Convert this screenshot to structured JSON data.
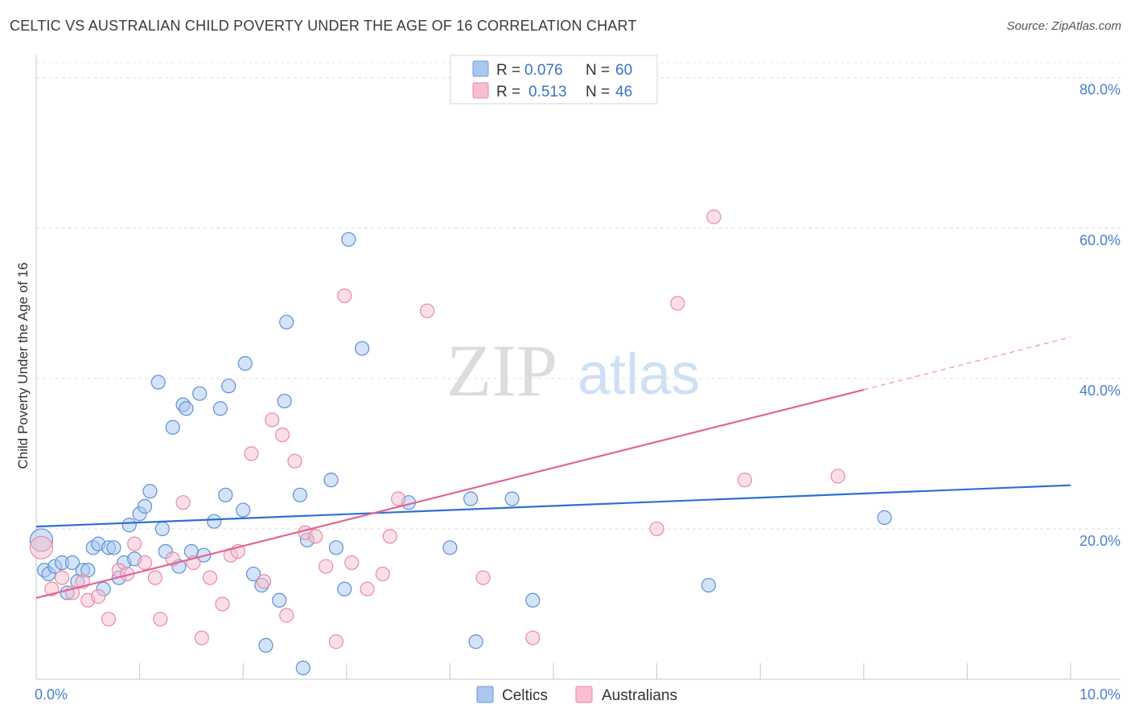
{
  "title": "CELTIC VS AUSTRALIAN CHILD POVERTY UNDER THE AGE OF 16 CORRELATION CHART",
  "source": "Source: ZipAtlas.com",
  "watermark": {
    "zip": "ZIP",
    "atlas": "atlas"
  },
  "legend": {
    "rows": [
      {
        "r_label": "R =",
        "r_value": "0.076",
        "n_label": "N =",
        "n_value": "60",
        "color": "#a9c7ef",
        "stroke": "#6f9ad8"
      },
      {
        "r_label": "R =",
        "r_value": "0.513",
        "n_label": "N =",
        "n_value": "46",
        "color": "#f7bfd0",
        "stroke": "#e88aa8"
      }
    ]
  },
  "chart_data": {
    "type": "scatter",
    "title": "CELTIC VS AUSTRALIAN CHILD POVERTY UNDER THE AGE OF 16 CORRELATION CHART",
    "xlabel": "",
    "ylabel": "Child Poverty Under the Age of 16",
    "xlim": [
      0,
      10
    ],
    "ylim": [
      0,
      82
    ],
    "x_tick_labels": [
      "0.0%",
      "10.0%"
    ],
    "y_ticks": [
      20,
      40,
      60,
      80
    ],
    "y_tick_labels": [
      "20.0%",
      "40.0%",
      "60.0%",
      "80.0%"
    ],
    "grid": true,
    "legend_position": "top-center",
    "series": [
      {
        "name": "Celtics",
        "color": "#a9c7ef",
        "stroke": "#5e8fd6",
        "trend": {
          "x": [
            0,
            10
          ],
          "y": [
            20.3,
            25.8
          ],
          "color": "#2f6fd0"
        },
        "points": [
          [
            0.05,
            18.5
          ],
          [
            0.08,
            14.5
          ],
          [
            0.12,
            14.0
          ],
          [
            0.18,
            15.0
          ],
          [
            0.25,
            15.5
          ],
          [
            0.3,
            11.5
          ],
          [
            0.35,
            15.5
          ],
          [
            0.4,
            13.0
          ],
          [
            0.45,
            14.5
          ],
          [
            0.5,
            14.5
          ],
          [
            0.55,
            17.5
          ],
          [
            0.6,
            18.0
          ],
          [
            0.65,
            12.0
          ],
          [
            0.7,
            17.5
          ],
          [
            0.75,
            17.5
          ],
          [
            0.8,
            13.5
          ],
          [
            0.85,
            15.5
          ],
          [
            0.9,
            20.5
          ],
          [
            0.95,
            16.0
          ],
          [
            1.0,
            22.0
          ],
          [
            1.05,
            23.0
          ],
          [
            1.1,
            25.0
          ],
          [
            1.18,
            39.5
          ],
          [
            1.22,
            20.0
          ],
          [
            1.25,
            17.0
          ],
          [
            1.32,
            33.5
          ],
          [
            1.38,
            15.0
          ],
          [
            1.42,
            36.5
          ],
          [
            1.45,
            36.0
          ],
          [
            1.5,
            17.0
          ],
          [
            1.58,
            38.0
          ],
          [
            1.62,
            16.5
          ],
          [
            1.72,
            21.0
          ],
          [
            1.78,
            36.0
          ],
          [
            1.83,
            24.5
          ],
          [
            1.86,
            39.0
          ],
          [
            2.0,
            22.5
          ],
          [
            2.02,
            42.0
          ],
          [
            2.1,
            14.0
          ],
          [
            2.18,
            12.5
          ],
          [
            2.22,
            4.5
          ],
          [
            2.35,
            10.5
          ],
          [
            2.4,
            37.0
          ],
          [
            2.42,
            47.5
          ],
          [
            2.55,
            24.5
          ],
          [
            2.58,
            1.5
          ],
          [
            2.62,
            18.5
          ],
          [
            2.85,
            26.5
          ],
          [
            2.9,
            17.5
          ],
          [
            2.98,
            12.0
          ],
          [
            3.02,
            58.5
          ],
          [
            3.15,
            44.0
          ],
          [
            3.6,
            23.5
          ],
          [
            4.0,
            17.5
          ],
          [
            4.2,
            24.0
          ],
          [
            4.25,
            5.0
          ],
          [
            4.6,
            24.0
          ],
          [
            4.8,
            10.5
          ],
          [
            6.5,
            12.5
          ],
          [
            8.2,
            21.5
          ]
        ]
      },
      {
        "name": "Australians",
        "color": "#f7bfd0",
        "stroke": "#e88aa8",
        "trend": {
          "x": [
            0,
            8.0
          ],
          "y": [
            10.8,
            38.5
          ],
          "color": "#e06593",
          "dash_to": [
            10,
            45.5
          ]
        },
        "points": [
          [
            0.05,
            17.5
          ],
          [
            0.15,
            12.0
          ],
          [
            0.25,
            13.5
          ],
          [
            0.35,
            11.5
          ],
          [
            0.45,
            13.0
          ],
          [
            0.5,
            10.5
          ],
          [
            0.6,
            11.0
          ],
          [
            0.7,
            8.0
          ],
          [
            0.8,
            14.5
          ],
          [
            0.88,
            14.0
          ],
          [
            0.95,
            18.0
          ],
          [
            1.05,
            15.5
          ],
          [
            1.15,
            13.5
          ],
          [
            1.2,
            8.0
          ],
          [
            1.32,
            16.0
          ],
          [
            1.42,
            23.5
          ],
          [
            1.52,
            15.5
          ],
          [
            1.6,
            5.5
          ],
          [
            1.68,
            13.5
          ],
          [
            1.8,
            10.0
          ],
          [
            1.88,
            16.5
          ],
          [
            1.95,
            17.0
          ],
          [
            2.08,
            30.0
          ],
          [
            2.2,
            13.0
          ],
          [
            2.28,
            34.5
          ],
          [
            2.38,
            32.5
          ],
          [
            2.42,
            8.5
          ],
          [
            2.5,
            29.0
          ],
          [
            2.6,
            19.5
          ],
          [
            2.7,
            19.0
          ],
          [
            2.8,
            15.0
          ],
          [
            2.9,
            5.0
          ],
          [
            2.98,
            51.0
          ],
          [
            3.05,
            15.5
          ],
          [
            3.2,
            12.0
          ],
          [
            3.35,
            14.0
          ],
          [
            3.42,
            19.0
          ],
          [
            3.5,
            24.0
          ],
          [
            3.78,
            49.0
          ],
          [
            4.32,
            13.5
          ],
          [
            4.8,
            5.5
          ],
          [
            6.0,
            20.0
          ],
          [
            6.2,
            50.0
          ],
          [
            6.55,
            61.5
          ],
          [
            6.85,
            26.5
          ],
          [
            7.75,
            27.0
          ]
        ]
      }
    ]
  },
  "bottom_legend": [
    {
      "label": "Celtics",
      "color": "#a9c7ef",
      "stroke": "#6f9ad8"
    },
    {
      "label": "Australians",
      "color": "#f7bfd0",
      "stroke": "#e88aa8"
    }
  ]
}
